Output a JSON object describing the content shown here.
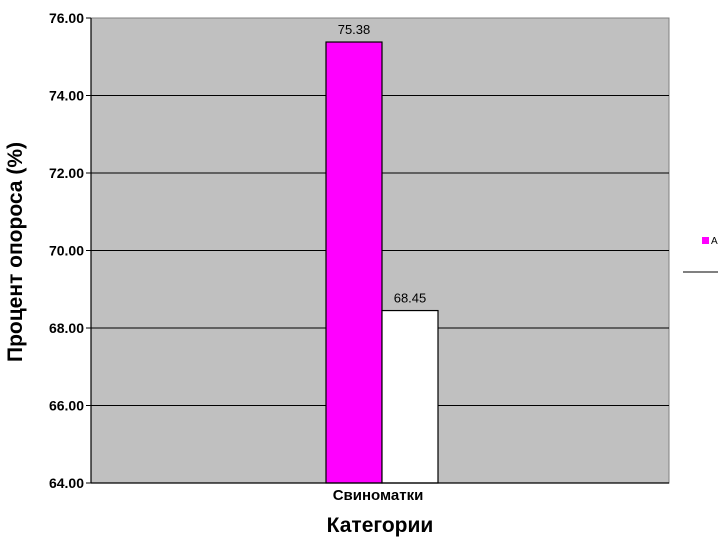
{
  "chart_data": {
    "type": "bar",
    "categories": [
      "Свиноматки"
    ],
    "series": [
      {
        "name": "AB",
        "values": [
          75.38
        ],
        "color": "#ff00ff",
        "label": "75.38"
      },
      {
        "name": "",
        "values": [
          68.45
        ],
        "color": "#ffffff",
        "label": "68.45"
      }
    ],
    "ylabel": "Процент опороса (%)",
    "xlabel": "Категории",
    "ylim": [
      64,
      76
    ],
    "yticks": [
      "64.00",
      "66.00",
      "68.00",
      "70.00",
      "72.00",
      "74.00",
      "76.00"
    ],
    "grid": true,
    "plot_background": "#c0c0c0",
    "legend_position": "right"
  }
}
